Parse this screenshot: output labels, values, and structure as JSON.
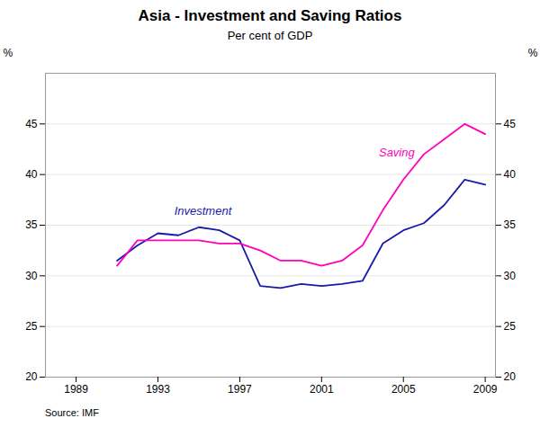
{
  "chart_data": {
    "type": "line",
    "title": "Asia - Investment and Saving Ratios",
    "subtitle": "Per cent of GDP",
    "source": "Source: IMF",
    "ylabel": "%",
    "y2label": "%",
    "x": [
      1991,
      1992,
      1993,
      1994,
      1995,
      1996,
      1997,
      1998,
      1999,
      2000,
      2001,
      2002,
      2003,
      2004,
      2005,
      2006,
      2007,
      2008,
      2009
    ],
    "series": [
      {
        "name": "Investment",
        "color": "#1a1aaa",
        "values": [
          31.5,
          33.0,
          34.2,
          34.0,
          34.8,
          34.5,
          33.5,
          29.0,
          28.8,
          29.2,
          29.0,
          29.2,
          29.5,
          33.2,
          34.5,
          35.2,
          37.0,
          39.5,
          39.0
        ]
      },
      {
        "name": "Saving",
        "color": "#ff00bb",
        "values": [
          31.0,
          33.5,
          33.5,
          33.5,
          33.5,
          33.2,
          33.2,
          32.5,
          31.5,
          31.5,
          31.0,
          31.5,
          33.0,
          36.5,
          39.5,
          42.0,
          43.5,
          45.0,
          44.0
        ]
      }
    ],
    "xlim": [
      1987.5,
      2009.5
    ],
    "xticks": [
      1989,
      1993,
      1997,
      2001,
      2005,
      2009
    ],
    "ylim": [
      20,
      50
    ],
    "yticks": [
      20,
      25,
      30,
      35,
      40,
      45
    ],
    "y2ticks": [
      20,
      25,
      30,
      35,
      40,
      45
    ],
    "grid": true,
    "annotations": [
      {
        "text": "Investment",
        "x": 1993.8,
        "y": 36.0,
        "color": "#1a1aaa"
      },
      {
        "text": "Saving",
        "x": 2003.8,
        "y": 41.8,
        "color": "#ff00bb"
      }
    ]
  }
}
